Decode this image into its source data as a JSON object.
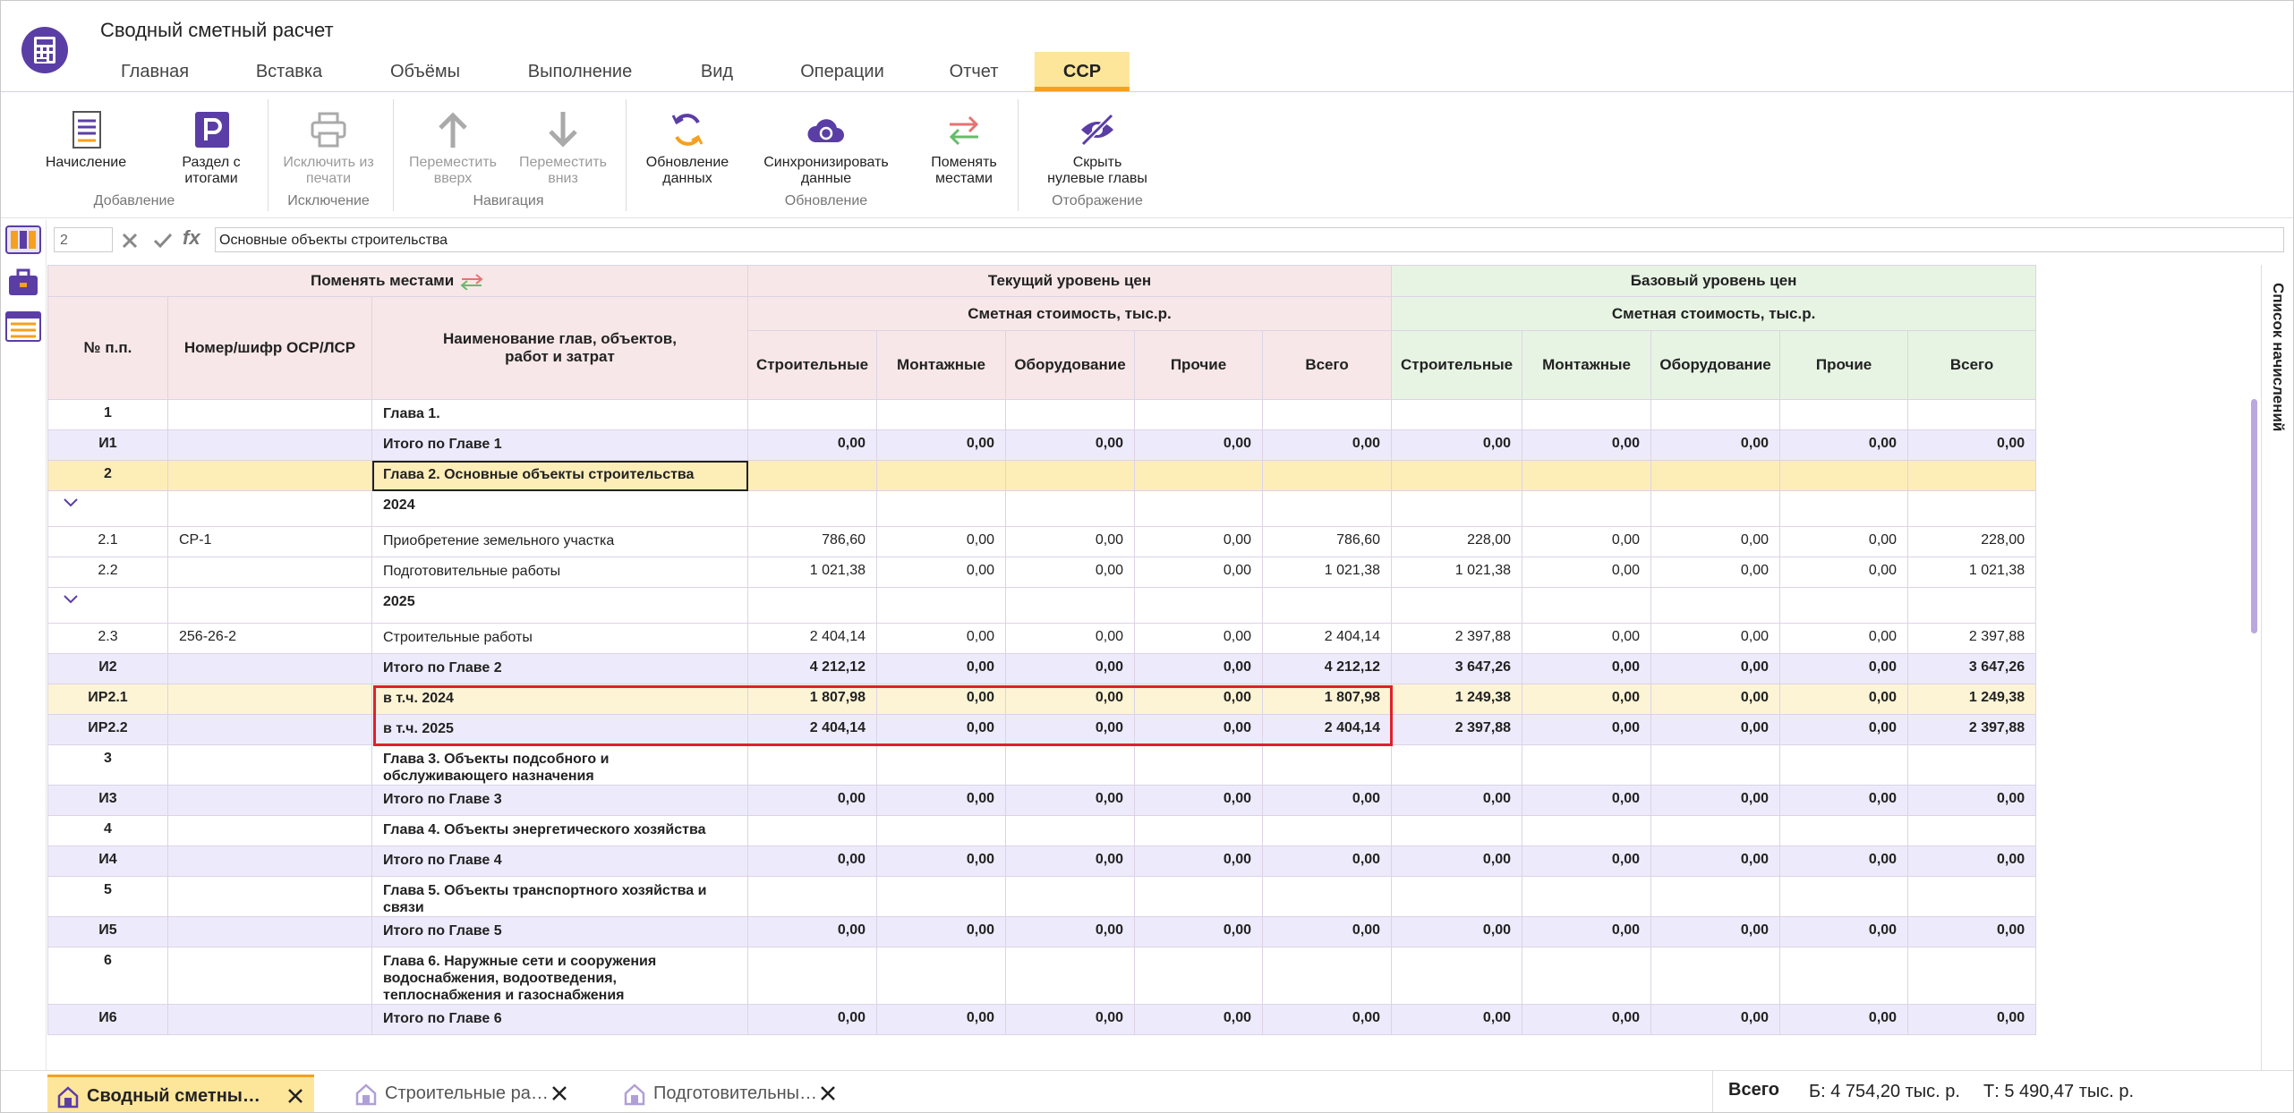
{
  "header": {
    "title": "Сводный сметный расчет",
    "tabs": [
      "Главная",
      "Вставка",
      "Объёмы",
      "Выполнение",
      "Вид",
      "Операции",
      "Отчет",
      "ССР"
    ]
  },
  "ribbon": {
    "groups": [
      {
        "label": "Добавление",
        "buttons": [
          "Начисление",
          "Раздел с итогами"
        ]
      },
      {
        "label": "Исключение",
        "buttons": [
          "Исключить из печати"
        ]
      },
      {
        "label": "Навигация",
        "buttons": [
          "Переместить вверх",
          "Переместить вниз"
        ]
      },
      {
        "label": "Обновление",
        "buttons": [
          "Обновление данных",
          "Синхронизировать данные",
          "Поменять местами"
        ]
      },
      {
        "label": "Отображение",
        "buttons": [
          "Скрыть нулевые главы"
        ]
      }
    ]
  },
  "formula_bar": {
    "cell": "2",
    "fx_label": "fx",
    "value": "Основные объекты строительства"
  },
  "table": {
    "swap_label": "Поменять местами",
    "left_columns": [
      "№ п.п.",
      "Номер/шифр ОСР/ЛСР",
      "Наименование глав, объектов, работ и затрат"
    ],
    "groups": [
      {
        "title": "Текущий уровень цен",
        "subtitle": "Сметная стоимость, тыс.р.",
        "columns": [
          "Строительные",
          "Монтажные",
          "Оборудование",
          "Прочие",
          "Всего"
        ]
      },
      {
        "title": "Базовый уровень цен",
        "subtitle": "Сметная стоимость, тыс.р.",
        "columns": [
          "Строительные",
          "Монтажные",
          "Оборудование",
          "Прочие",
          "Всего"
        ]
      }
    ],
    "rows": [
      {
        "num": "1",
        "name": "Глава 1."
      },
      {
        "num": "И1",
        "name": "Итого по Главе 1",
        "cells": [
          "0,00",
          "0,00",
          "0,00",
          "0,00",
          "0,00",
          "0,00",
          "0,00",
          "0,00",
          "0,00",
          "0,00"
        ]
      },
      {
        "num": "2",
        "name": "Глава 2. Основные объекты строительства"
      },
      {
        "num": null,
        "name": "2024"
      },
      {
        "num": "2.1",
        "code": "СР-1",
        "name": "Приобретение земельного участка",
        "cells": [
          "786,60",
          "0,00",
          "0,00",
          "0,00",
          "786,60",
          "228,00",
          "0,00",
          "0,00",
          "0,00",
          "228,00"
        ]
      },
      {
        "num": "2.2",
        "name": "Подготовительные работы",
        "cells": [
          "1 021,38",
          "0,00",
          "0,00",
          "0,00",
          "1 021,38",
          "1 021,38",
          "0,00",
          "0,00",
          "0,00",
          "1 021,38"
        ]
      },
      {
        "num": null,
        "name": "2025"
      },
      {
        "num": "2.3",
        "code": "256-26-2",
        "name": "Строительные работы",
        "cells": [
          "2 404,14",
          "0,00",
          "0,00",
          "0,00",
          "2 404,14",
          "2 397,88",
          "0,00",
          "0,00",
          "0,00",
          "2 397,88"
        ]
      },
      {
        "num": "И2",
        "name": "Итого по Главе 2",
        "cells": [
          "4 212,12",
          "0,00",
          "0,00",
          "0,00",
          "4 212,12",
          "3 647,26",
          "0,00",
          "0,00",
          "0,00",
          "3 647,26"
        ]
      },
      {
        "num": "ИР2.1",
        "name": "в т.ч. 2024",
        "cells": [
          "1 807,98",
          "0,00",
          "0,00",
          "0,00",
          "1 807,98",
          "1 249,38",
          "0,00",
          "0,00",
          "0,00",
          "1 249,38"
        ]
      },
      {
        "num": "ИР2.2",
        "name": "в т.ч. 2025",
        "cells": [
          "2 404,14",
          "0,00",
          "0,00",
          "0,00",
          "2 404,14",
          "2 397,88",
          "0,00",
          "0,00",
          "0,00",
          "2 397,88"
        ]
      },
      {
        "num": "3",
        "name": "Глава 3. Объекты подсобного и обслуживающего назначения"
      },
      {
        "num": "И3",
        "name": "Итого по Главе 3",
        "cells": [
          "0,00",
          "0,00",
          "0,00",
          "0,00",
          "0,00",
          "0,00",
          "0,00",
          "0,00",
          "0,00",
          "0,00"
        ]
      },
      {
        "num": "4",
        "name": "Глава 4. Объекты энергетического хозяйства"
      },
      {
        "num": "И4",
        "name": "Итого по Главе 4",
        "cells": [
          "0,00",
          "0,00",
          "0,00",
          "0,00",
          "0,00",
          "0,00",
          "0,00",
          "0,00",
          "0,00",
          "0,00"
        ]
      },
      {
        "num": "5",
        "name": "Глава 5. Объекты транспортного хозяйства и связи"
      },
      {
        "num": "И5",
        "name": "Итого по Главе 5",
        "cells": [
          "0,00",
          "0,00",
          "0,00",
          "0,00",
          "0,00",
          "0,00",
          "0,00",
          "0,00",
          "0,00",
          "0,00"
        ]
      },
      {
        "num": "6",
        "name": "Глава 6. Наружные сети и сооружения водоснабжения, водоотведения, теплоснабжения и газоснабжения"
      },
      {
        "num": "И6",
        "name": "Итого по Главе 6",
        "cells": [
          "0,00",
          "0,00",
          "0,00",
          "0,00",
          "0,00",
          "0,00",
          "0,00",
          "0,00",
          "0,00",
          "0,00"
        ]
      }
    ]
  },
  "side_panel": {
    "title": "Список начислений"
  },
  "bottom_bar": {
    "documents": [
      "Сводный сметны…",
      "Строительные ра…",
      "Подготовительны…"
    ],
    "total_label": "Всего",
    "base_total": "Б: 4 754,20 тыс. р.",
    "current_total": "Т: 5 490,47 тыс. р."
  }
}
